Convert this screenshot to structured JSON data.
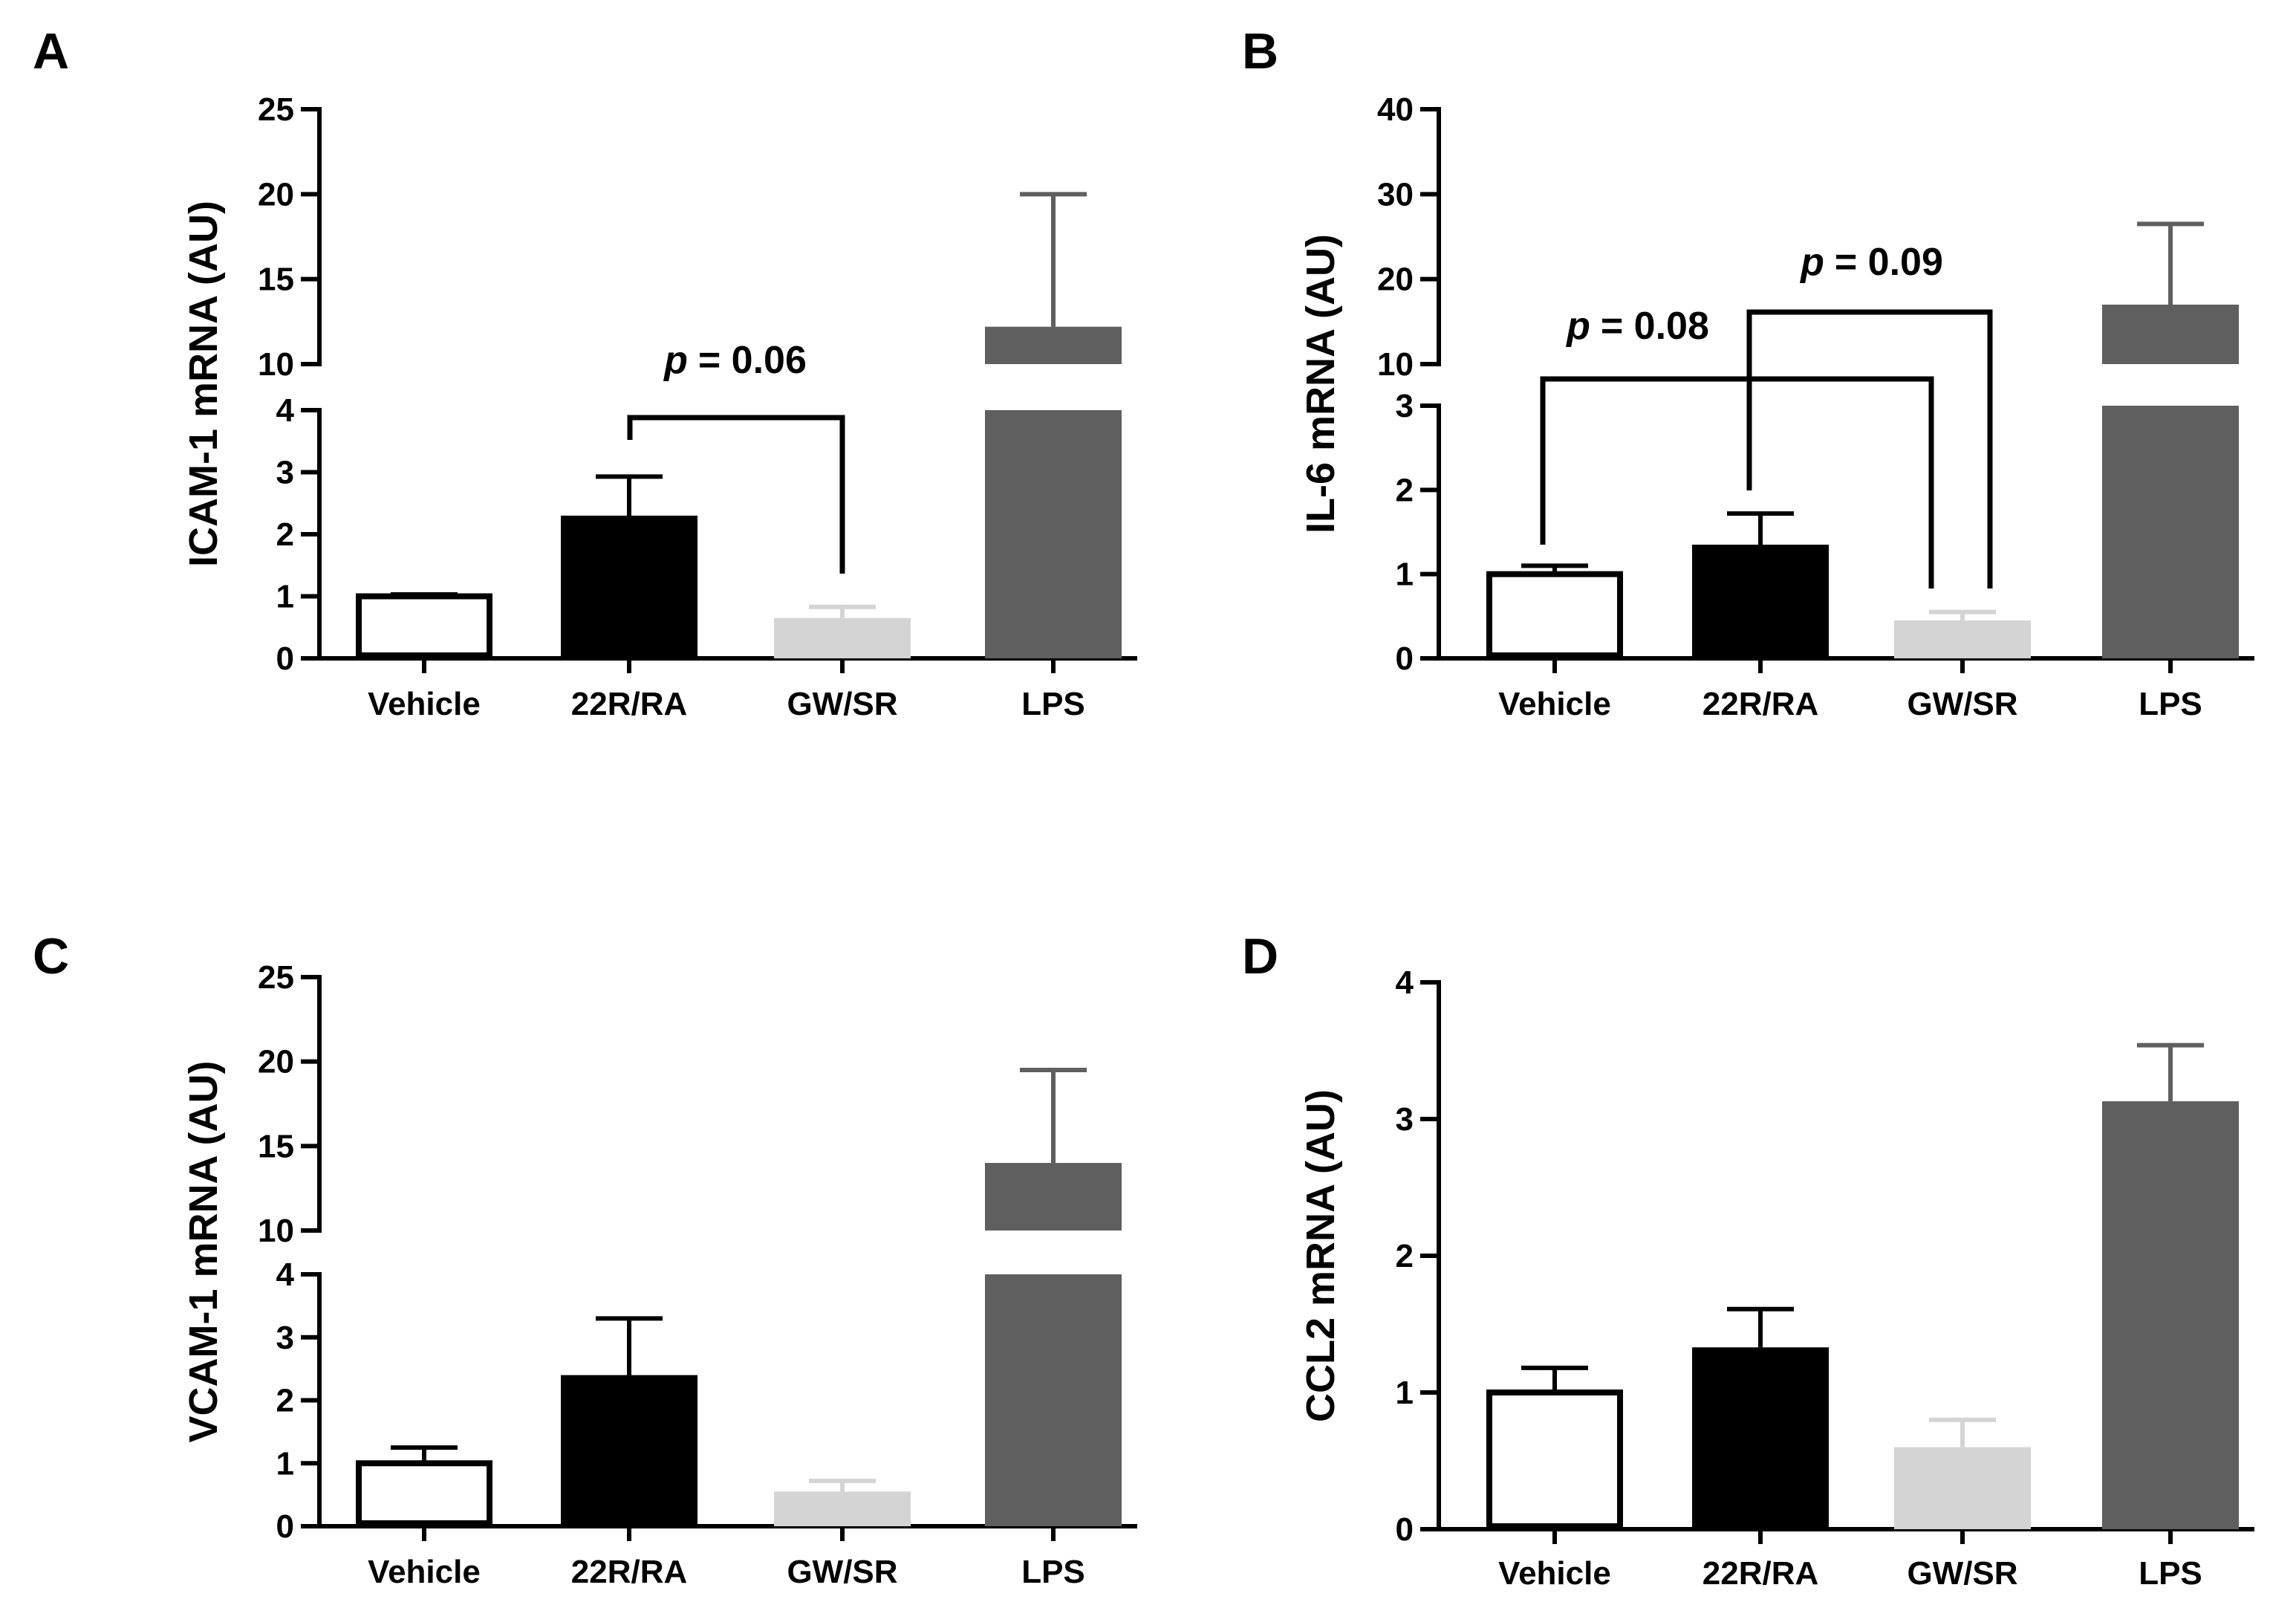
{
  "chart_data": [
    {
      "type": "bar",
      "panel_label": "A",
      "categories": [
        "Vehicle",
        "22R/RA",
        "GW/SR",
        "LPS"
      ],
      "values": [
        1.0,
        2.3,
        0.65,
        12.2
      ],
      "errors": [
        1.03,
        2.93,
        0.83,
        20.0
      ],
      "colors": [
        "#ffffff",
        "#000000",
        "#d4d4d4",
        "#5f5f5f"
      ],
      "ylabel": "ICAM-1 mRNA (AU)",
      "axis_break": {
        "lower": [
          0,
          4
        ],
        "upper": [
          10,
          25
        ]
      },
      "yticks_lower": [
        "0",
        "1",
        "2",
        "3",
        "4"
      ],
      "yticks_upper": [
        "10",
        "15",
        "20",
        "25"
      ],
      "annotations": [
        {
          "p_label": "p",
          "p_value": "= 0.06",
          "bracket": {
            "from": 1,
            "to": 2
          }
        }
      ]
    },
    {
      "type": "bar",
      "panel_label": "B",
      "categories": [
        "Vehicle",
        "22R/RA",
        "GW/SR",
        "LPS"
      ],
      "values": [
        1.0,
        1.35,
        0.45,
        17.0
      ],
      "errors": [
        1.1,
        1.72,
        0.55,
        26.5
      ],
      "colors": [
        "#ffffff",
        "#000000",
        "#d4d4d4",
        "#5f5f5f"
      ],
      "ylabel": "IL-6 mRNA (AU)",
      "axis_break": {
        "lower": [
          0,
          3
        ],
        "upper": [
          10,
          40
        ]
      },
      "yticks_lower": [
        "0",
        "1",
        "2",
        "3"
      ],
      "yticks_upper": [
        "10",
        "20",
        "30",
        "40"
      ],
      "annotations": [
        {
          "p_label": "p",
          "p_value": "= 0.08",
          "bracket": {
            "from": 0,
            "to": 2
          }
        },
        {
          "p_label": "p",
          "p_value": "= 0.09",
          "bracket": {
            "from": 1,
            "to": 2
          }
        }
      ]
    },
    {
      "type": "bar",
      "panel_label": "C",
      "categories": [
        "Vehicle",
        "22R/RA",
        "GW/SR",
        "LPS"
      ],
      "values": [
        1.0,
        2.4,
        0.55,
        14.0
      ],
      "errors": [
        1.25,
        3.3,
        0.72,
        19.5
      ],
      "colors": [
        "#ffffff",
        "#000000",
        "#d4d4d4",
        "#5f5f5f"
      ],
      "ylabel": "VCAM-1 mRNA (AU)",
      "axis_break": {
        "lower": [
          0,
          4
        ],
        "upper": [
          10,
          25
        ]
      },
      "yticks_lower": [
        "0",
        "1",
        "2",
        "3",
        "4"
      ],
      "yticks_upper": [
        "10",
        "15",
        "20",
        "25"
      ],
      "annotations": []
    },
    {
      "type": "bar",
      "panel_label": "D",
      "categories": [
        "Vehicle",
        "22R/RA",
        "GW/SR",
        "LPS"
      ],
      "values": [
        1.0,
        1.33,
        0.6,
        3.13
      ],
      "errors": [
        1.18,
        1.61,
        0.8,
        3.54
      ],
      "colors": [
        "#ffffff",
        "#000000",
        "#d4d4d4",
        "#5f5f5f"
      ],
      "ylabel": "CCL2 mRNA (AU)",
      "ylim": [
        0,
        4
      ],
      "yticks": [
        "0",
        "1",
        "2",
        "3",
        "4"
      ],
      "annotations": []
    }
  ]
}
